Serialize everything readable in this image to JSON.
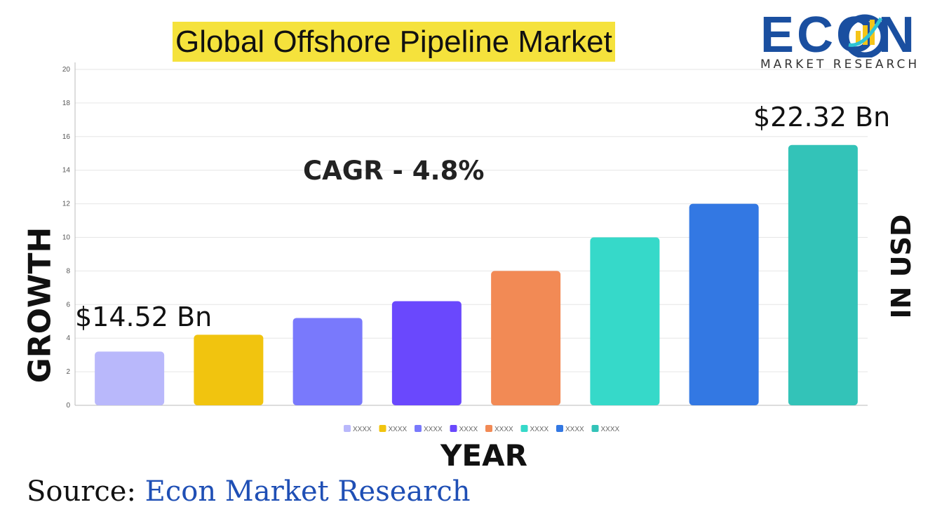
{
  "title": "Global Offshore Pipeline Market",
  "logo": {
    "word": "ECON",
    "subtitle": "MARKET RESEARCH"
  },
  "y_axis_label": "GROWTH",
  "right_axis_label": "IN USD",
  "x_axis_label": "YEAR",
  "cagr_label": "CAGR - 4.8%",
  "start_value_label": "$14.52 Bn",
  "end_value_label": "$22.32 Bn",
  "source": {
    "prefix": "Source:",
    "name": "Econ Market Research"
  },
  "chart_data": {
    "type": "bar",
    "categories": [
      "XXXX",
      "XXXX",
      "XXXX",
      "XXXX",
      "XXXX",
      "XXXX",
      "XXXX",
      "XXXX"
    ],
    "values": [
      3.2,
      4.2,
      5.2,
      6.2,
      8.0,
      10.0,
      12.0,
      15.5
    ],
    "colors": [
      "#b9b8fb",
      "#f1c40f",
      "#7979fc",
      "#6a48fd",
      "#f28a55",
      "#36d9c9",
      "#3378e3",
      "#33c3b8"
    ],
    "ylim": [
      0,
      20
    ],
    "yticks": [
      0,
      2,
      4,
      6,
      8,
      10,
      12,
      14,
      16,
      18,
      20
    ],
    "grid": true,
    "legend": "bottom"
  }
}
